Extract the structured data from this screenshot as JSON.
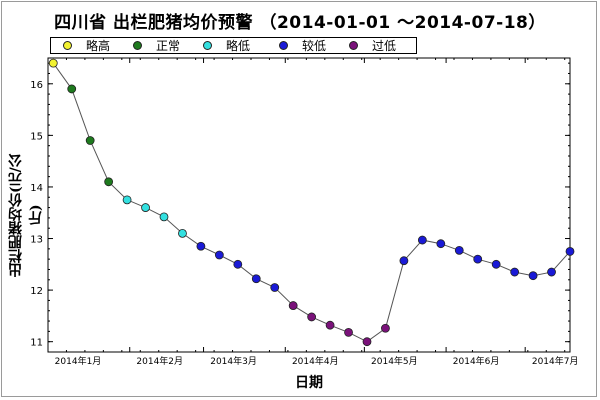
{
  "title": "四川省 出栏肥猪均价预警 （2014-01-01 ～2014-07-18）",
  "legend": [
    {
      "label": "略高",
      "color": "#f2f230"
    },
    {
      "label": "正常",
      "color": "#1e7a1e"
    },
    {
      "label": "略低",
      "color": "#33e0e0"
    },
    {
      "label": "较低",
      "color": "#1a1ad6"
    },
    {
      "label": "过低",
      "color": "#7a127a"
    }
  ],
  "chart_data": {
    "type": "line",
    "title": "四川省 出栏肥猪均价预警 （2014-01-01 ～2014-07-18）",
    "xlabel": "日期",
    "ylabel": "出栏肥猪均价(元/公斤)",
    "ylim": [
      10.8,
      16.5
    ],
    "xlim": [
      "2014-01-01",
      "2014-07-18"
    ],
    "yticks": [
      11,
      12,
      13,
      14,
      15,
      16
    ],
    "xticks": [
      {
        "date": "2014-01-01",
        "label": "2014年1月"
      },
      {
        "date": "2014-02-01",
        "label": "2014年2月"
      },
      {
        "date": "2014-03-01",
        "label": "2014年3月"
      },
      {
        "date": "2014-04-01",
        "label": "2014年4月"
      },
      {
        "date": "2014-05-01",
        "label": "2014年5月"
      },
      {
        "date": "2014-06-01",
        "label": "2014年6月"
      },
      {
        "date": "2014-07-01",
        "label": "2014年7月"
      }
    ],
    "grid": false,
    "legend_position": "top-left",
    "points": [
      {
        "x": "2014-01-03",
        "y": 16.4,
        "level": "略高"
      },
      {
        "x": "2014-01-10",
        "y": 15.9,
        "level": "正常"
      },
      {
        "x": "2014-01-17",
        "y": 14.9,
        "level": "正常"
      },
      {
        "x": "2014-01-24",
        "y": 14.1,
        "level": "正常"
      },
      {
        "x": "2014-01-31",
        "y": 13.75,
        "level": "略低"
      },
      {
        "x": "2014-02-07",
        "y": 13.6,
        "level": "略低"
      },
      {
        "x": "2014-02-14",
        "y": 13.42,
        "level": "略低"
      },
      {
        "x": "2014-02-21",
        "y": 13.1,
        "level": "略低"
      },
      {
        "x": "2014-02-28",
        "y": 12.85,
        "level": "较低"
      },
      {
        "x": "2014-03-07",
        "y": 12.68,
        "level": "较低"
      },
      {
        "x": "2014-03-14",
        "y": 12.5,
        "level": "较低"
      },
      {
        "x": "2014-03-21",
        "y": 12.22,
        "level": "较低"
      },
      {
        "x": "2014-03-28",
        "y": 12.05,
        "level": "较低"
      },
      {
        "x": "2014-04-04",
        "y": 11.7,
        "level": "过低"
      },
      {
        "x": "2014-04-11",
        "y": 11.48,
        "level": "过低"
      },
      {
        "x": "2014-04-18",
        "y": 11.32,
        "level": "过低"
      },
      {
        "x": "2014-04-25",
        "y": 11.18,
        "level": "过低"
      },
      {
        "x": "2014-05-02",
        "y": 11.0,
        "level": "过低"
      },
      {
        "x": "2014-05-09",
        "y": 11.26,
        "level": "过低"
      },
      {
        "x": "2014-05-16",
        "y": 12.57,
        "level": "较低"
      },
      {
        "x": "2014-05-23",
        "y": 12.97,
        "level": "较低"
      },
      {
        "x": "2014-05-30",
        "y": 12.9,
        "level": "较低"
      },
      {
        "x": "2014-06-06",
        "y": 12.77,
        "level": "较低"
      },
      {
        "x": "2014-06-13",
        "y": 12.6,
        "level": "较低"
      },
      {
        "x": "2014-06-20",
        "y": 12.5,
        "level": "较低"
      },
      {
        "x": "2014-06-27",
        "y": 12.35,
        "level": "较低"
      },
      {
        "x": "2014-07-04",
        "y": 12.28,
        "level": "较低"
      },
      {
        "x": "2014-07-11",
        "y": 12.35,
        "level": "较低"
      },
      {
        "x": "2014-07-18",
        "y": 12.75,
        "level": "较低"
      }
    ]
  }
}
